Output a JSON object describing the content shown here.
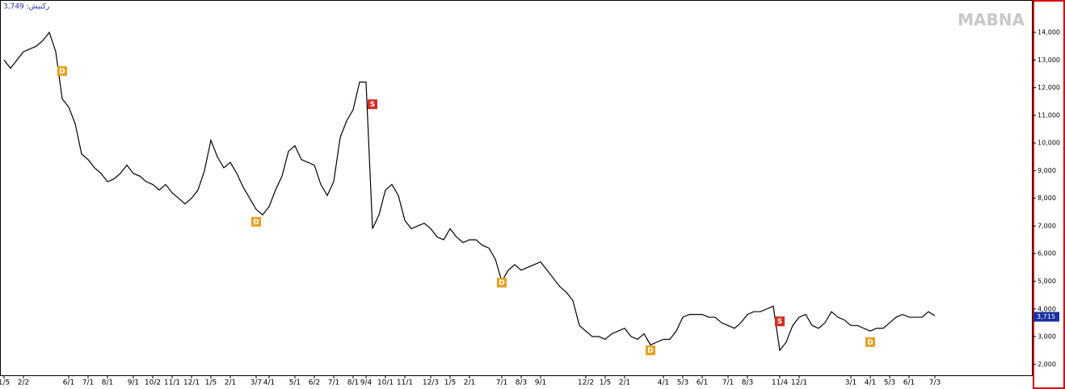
{
  "chart_data": {
    "type": "line",
    "header_label": "3,749 :رکنیش",
    "watermark": "MABNA",
    "categories": [
      "1/5",
      null,
      null,
      "2/2",
      null,
      null,
      null,
      null,
      null,
      null,
      "6/1",
      null,
      null,
      "7/1",
      null,
      null,
      "8/1",
      null,
      null,
      null,
      "9/1",
      null,
      null,
      "10/2",
      null,
      null,
      "11/1",
      null,
      null,
      "12/1",
      null,
      null,
      "1/5",
      null,
      null,
      "2/1",
      null,
      null,
      null,
      "3/7",
      null,
      "4/1",
      null,
      null,
      null,
      "5/1",
      null,
      null,
      "6/2",
      null,
      null,
      "7/1",
      null,
      null,
      "8/1",
      null,
      "9/4",
      null,
      null,
      "10/1",
      null,
      null,
      "11/1",
      null,
      null,
      null,
      "12/3",
      null,
      null,
      "1/5",
      null,
      null,
      "2/1",
      null,
      null,
      null,
      null,
      "7/1",
      null,
      null,
      "8/3",
      null,
      null,
      "9/1",
      null,
      null,
      null,
      null,
      null,
      null,
      "12/2",
      null,
      null,
      "1/5",
      null,
      null,
      "2/1",
      null,
      null,
      null,
      null,
      null,
      "4/1",
      null,
      null,
      "5/3",
      null,
      null,
      "6/1",
      null,
      null,
      null,
      "7/1",
      null,
      null,
      "8/3",
      null,
      null,
      null,
      null,
      "11/4",
      null,
      null,
      "12/1",
      null,
      null,
      null,
      null,
      null,
      null,
      null,
      "3/1",
      null,
      null,
      "4/1",
      null,
      null,
      "5/3",
      null,
      null,
      "6/1",
      null,
      null,
      null,
      "7/3"
    ],
    "series": [
      {
        "color": "#000000",
        "values": [
          13000,
          12700,
          13000,
          13300,
          13400,
          13500,
          13700,
          14000,
          13300,
          11600,
          11300,
          10700,
          9600,
          9400,
          9100,
          8900,
          8600,
          8700,
          8900,
          9200,
          8900,
          8800,
          8600,
          8500,
          8300,
          8500,
          8200,
          8000,
          7800,
          8000,
          8300,
          9000,
          10100,
          9500,
          9100,
          9300,
          8900,
          8400,
          8000,
          7600,
          7400,
          7700,
          8300,
          8800,
          9700,
          9900,
          9400,
          9300,
          9200,
          8500,
          8100,
          8600,
          10200,
          10800,
          11200,
          12200,
          12200,
          6900,
          7400,
          8300,
          8500,
          8100,
          7200,
          6900,
          7000,
          7100,
          6900,
          6600,
          6500,
          6900,
          6600,
          6400,
          6500,
          6500,
          6300,
          6200,
          5800,
          5000,
          5400,
          5600,
          5400,
          5500,
          5600,
          5700,
          5400,
          5100,
          4800,
          4600,
          4300,
          3400,
          3200,
          3000,
          3000,
          2900,
          3100,
          3200,
          3300,
          3000,
          2900,
          3100,
          2700,
          2800,
          2900,
          2900,
          3200,
          3700,
          3800,
          3800,
          3800,
          3700,
          3700,
          3500,
          3400,
          3300,
          3500,
          3800,
          3900,
          3900,
          4000,
          4100,
          2500,
          2800,
          3400,
          3700,
          3800,
          3400,
          3300,
          3500,
          3900,
          3700,
          3600,
          3400,
          3400,
          3300,
          3200,
          3300,
          3300,
          3500,
          3700,
          3800,
          3700,
          3700,
          3700,
          3900,
          3750
        ]
      }
    ],
    "signals": [
      {
        "label": "D",
        "index": 9,
        "value": 12600,
        "color": "#e8a020"
      },
      {
        "label": "D",
        "index": 39,
        "value": 7150,
        "color": "#e8a020"
      },
      {
        "label": "S",
        "index": 57,
        "value": 11400,
        "color": "#d42b1e"
      },
      {
        "label": "D",
        "index": 77,
        "value": 4950,
        "color": "#e8a020"
      },
      {
        "label": "D",
        "index": 100,
        "value": 2500,
        "color": "#e8a020"
      },
      {
        "label": "S",
        "index": 120,
        "value": 3550,
        "color": "#d42b1e"
      },
      {
        "label": "D",
        "index": 134,
        "value": 2800,
        "color": "#e8a020"
      }
    ],
    "last_price": {
      "value": 3715,
      "label": "3,715"
    },
    "ylim": [
      1600,
      15170
    ],
    "yticks": [
      {
        "value": 2000,
        "label": "2,000"
      },
      {
        "value": 3000,
        "label": "3,000"
      },
      {
        "value": 4000,
        "label": "4,000"
      },
      {
        "value": 5000,
        "label": "5,000"
      },
      {
        "value": 6000,
        "label": "6,000"
      },
      {
        "value": 7000,
        "label": "7,000"
      },
      {
        "value": 8000,
        "label": "8,000"
      },
      {
        "value": 9000,
        "label": "9,000"
      },
      {
        "value": 10000,
        "label": "10,000"
      },
      {
        "value": 11000,
        "label": "11,000"
      },
      {
        "value": 12000,
        "label": "12,000"
      },
      {
        "value": 13000,
        "label": "13,000"
      },
      {
        "value": 14000,
        "label": "14,000"
      }
    ]
  }
}
